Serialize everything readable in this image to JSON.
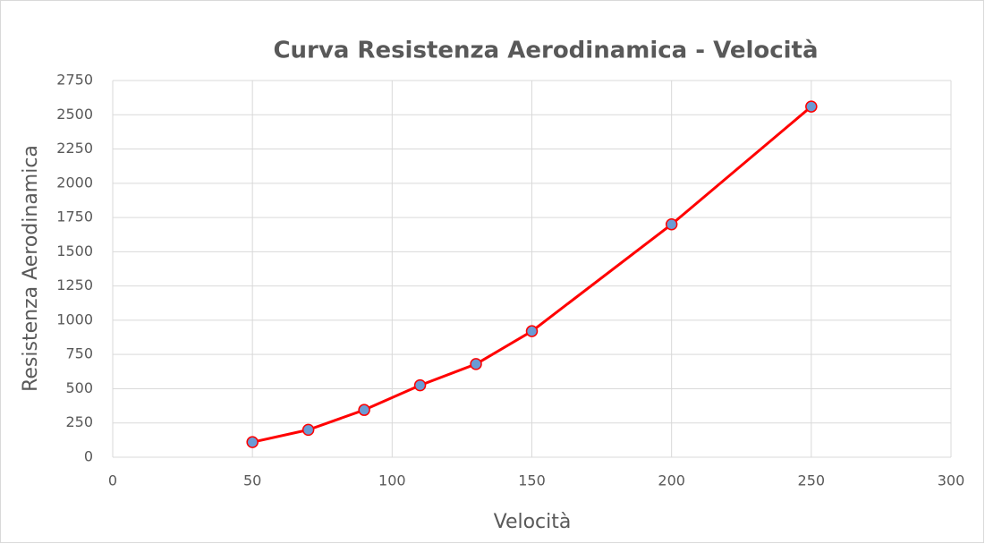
{
  "chart_data": {
    "type": "scatter",
    "title": "Curva Resistenza Aerodinamica - Velocità",
    "x_label": "Velocità",
    "y_label": "Resistenza Aerodinamica",
    "x": [
      50,
      70,
      90,
      110,
      130,
      150,
      200,
      250
    ],
    "series": [
      {
        "name": "Resistenza Aerodinamica",
        "color": "#ff0000",
        "marker_color": "#6a9bd4",
        "values": [
          110,
          200,
          345,
          525,
          680,
          920,
          1700,
          2560
        ]
      }
    ],
    "xlim": [
      0,
      300
    ],
    "xticks": [
      0,
      50,
      100,
      150,
      200,
      250,
      300
    ],
    "ylim": [
      0,
      2750
    ],
    "yticks": [
      0,
      250,
      500,
      750,
      1000,
      1250,
      1500,
      1750,
      2000,
      2250,
      2500,
      2750
    ],
    "grid": true,
    "legend": false
  }
}
